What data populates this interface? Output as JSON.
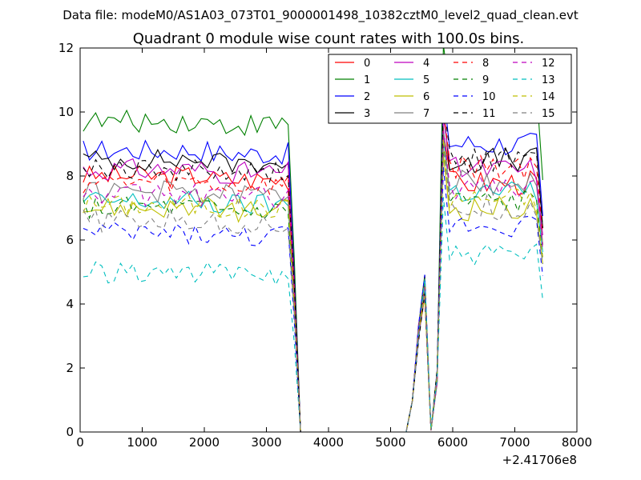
{
  "header": {
    "data_file": "Data file: modeM0/AS1A03_073T01_9000001498_10382cztM0_level2_quad_clean.evt"
  },
  "chart_data": {
    "type": "line",
    "title": "Quadrant 0 module wise count rates with 100.0s bins.",
    "xlabel": "",
    "ylabel": "",
    "xlim": [
      0,
      8000
    ],
    "ylim": [
      0,
      12
    ],
    "x_offset_label": "+2.41706e8",
    "xticks": [
      0,
      1000,
      2000,
      3000,
      4000,
      5000,
      6000,
      7000,
      8000
    ],
    "yticks": [
      0,
      2,
      4,
      6,
      8,
      10,
      12
    ],
    "grid": false,
    "legend_position": "upper-right",
    "legend_columns": 4,
    "colors": [
      "#ff0000",
      "#008000",
      "#0000ff",
      "#000000",
      "#bf00bf",
      "#00bfbf",
      "#bfbf00",
      "#808080",
      "#ff0000",
      "#008000",
      "#0000ff",
      "#000000",
      "#bf00bf",
      "#00bfbf",
      "#bfbf00",
      "#808080"
    ],
    "styles": [
      "solid",
      "solid",
      "solid",
      "solid",
      "solid",
      "solid",
      "solid",
      "solid",
      "dashed",
      "dashed",
      "dashed",
      "dashed",
      "dashed",
      "dashed",
      "dashed",
      "dashed"
    ],
    "segment1_x": [
      50,
      150,
      250,
      350,
      450,
      550,
      650,
      750,
      850,
      950,
      1050,
      1150,
      1250,
      1350,
      1450,
      1550,
      1650,
      1750,
      1850,
      1950,
      2050,
      2150,
      2250,
      2350,
      2450,
      2550,
      2650,
      2750,
      2850,
      2950,
      3050,
      3150,
      3250,
      3350,
      3450,
      3550
    ],
    "segment2_x": [
      5250,
      5350,
      5450,
      5550,
      5650,
      5750,
      5850,
      5950,
      6050,
      6150,
      6250,
      6350,
      6450,
      6550,
      6650,
      6750,
      6850,
      6950,
      7050,
      7150,
      7250,
      7350,
      7450
    ],
    "series": [
      {
        "name": "0",
        "level1": 8.0,
        "level2": 7.8
      },
      {
        "name": "1",
        "level1": 9.7,
        "level2": 10.5
      },
      {
        "name": "2",
        "level1": 8.8,
        "level2": 9.0
      },
      {
        "name": "3",
        "level1": 8.5,
        "level2": 8.5
      },
      {
        "name": "4",
        "level1": 8.2,
        "level2": 8.2
      },
      {
        "name": "5",
        "level1": 7.2,
        "level2": 7.5
      },
      {
        "name": "6",
        "level1": 7.0,
        "level2": 7.0
      },
      {
        "name": "7",
        "level1": 7.5,
        "level2": 7.8
      },
      {
        "name": "8",
        "level1": 7.8,
        "level2": 8.3
      },
      {
        "name": "9",
        "level1": 7.0,
        "level2": 7.2
      },
      {
        "name": "10",
        "level1": 6.2,
        "level2": 6.5
      },
      {
        "name": "11",
        "level1": 8.2,
        "level2": 8.5
      },
      {
        "name": "12",
        "level1": 7.4,
        "level2": 7.6
      },
      {
        "name": "13",
        "level1": 5.0,
        "level2": 5.5
      },
      {
        "name": "14",
        "level1": 7.1,
        "level2": 7.3
      },
      {
        "name": "15",
        "level1": 6.6,
        "level2": 7.0
      }
    ]
  }
}
